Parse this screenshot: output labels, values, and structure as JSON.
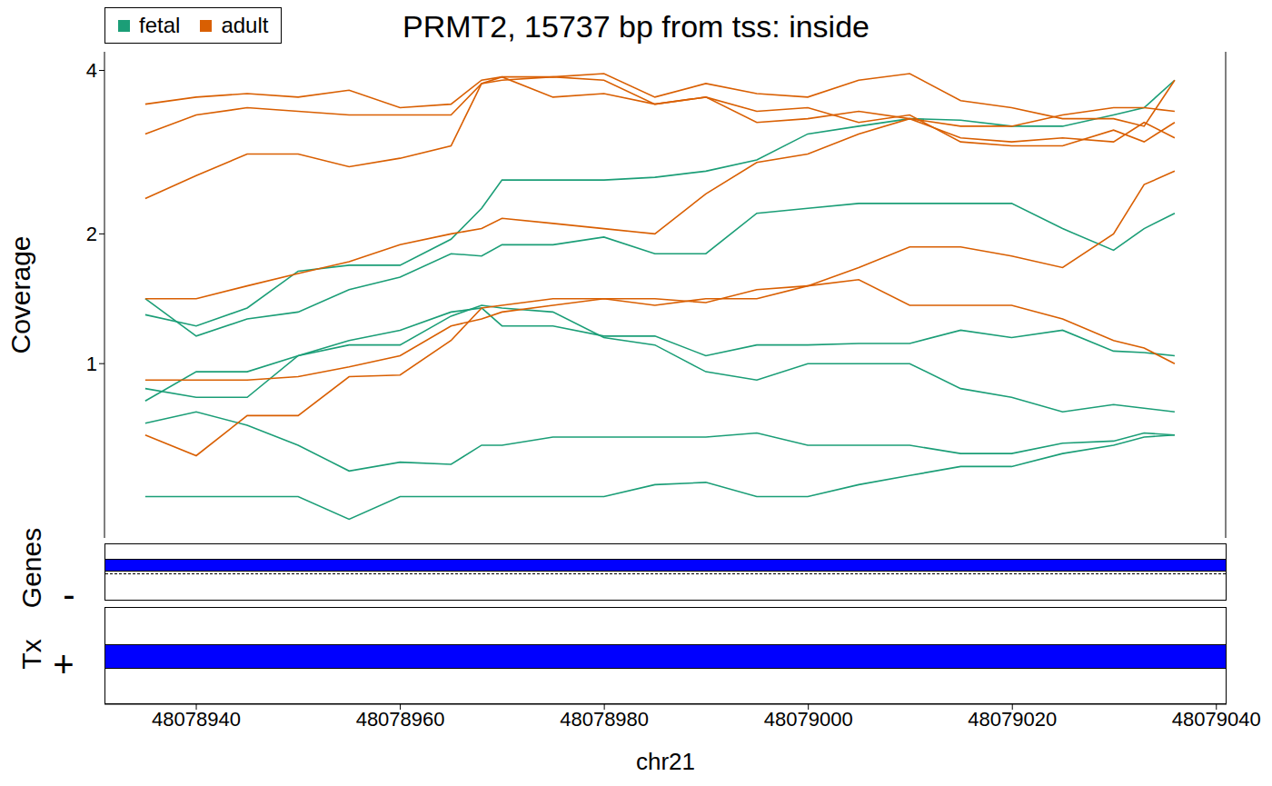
{
  "chart_data": {
    "type": "line",
    "title": "PRMT2, 15737 bp from tss: inside",
    "x_label": "chr21",
    "y_label": "Coverage",
    "log": "y",
    "legend": "top-left",
    "grid": false,
    "xlim": [
      48078931,
      48079041
    ],
    "xticks": [
      48078940,
      48078960,
      48078980,
      48079000,
      48079020,
      48079040
    ],
    "ylim": [
      0.16,
      4.3
    ],
    "yticks": [
      1,
      2,
      4
    ],
    "x": [
      48078935,
      48078940,
      48078945,
      48078950,
      48078955,
      48078960,
      48078965,
      48078968,
      48078970,
      48078975,
      48078980,
      48078985,
      48078990,
      48078995,
      48079000,
      48079005,
      48079010,
      48079015,
      48079020,
      48079025,
      48079030,
      48079033,
      48079036
    ],
    "series": [
      {
        "name": "fetal",
        "color": "#1b9e77",
        "values": [
          1.33,
          1.25,
          1.38,
          1.67,
          1.72,
          1.72,
          1.95,
          2.25,
          2.55,
          2.55,
          2.55,
          2.58,
          2.65,
          2.78,
          3.1,
          3.2,
          3.3,
          3.28,
          3.2,
          3.2,
          3.35,
          3.45,
          3.85
        ]
      },
      {
        "name": "fetal",
        "color": "#1b9e77",
        "values": [
          1.45,
          1.18,
          1.3,
          1.35,
          1.52,
          1.62,
          1.82,
          1.8,
          1.9,
          1.9,
          1.97,
          1.82,
          1.82,
          2.2,
          2.25,
          2.3,
          2.3,
          2.3,
          2.3,
          2.05,
          1.85,
          2.05,
          2.2
        ]
      },
      {
        "name": "fetal",
        "color": "#1b9e77",
        "values": [
          0.85,
          0.8,
          0.8,
          1.05,
          1.15,
          1.22,
          1.35,
          1.38,
          1.25,
          1.25,
          1.18,
          1.18,
          1.05,
          1.12,
          1.12,
          1.13,
          1.13,
          1.22,
          1.17,
          1.22,
          1.08,
          1.07,
          1.05
        ]
      },
      {
        "name": "fetal",
        "color": "#1b9e77",
        "values": [
          0.78,
          0.95,
          0.95,
          1.05,
          1.12,
          1.12,
          1.32,
          1.4,
          1.38,
          1.35,
          1.17,
          1.12,
          0.95,
          0.9,
          1.0,
          1.0,
          1.0,
          0.85,
          0.8,
          0.72,
          0.76,
          0.74,
          0.72
        ]
      },
      {
        "name": "fetal",
        "color": "#1b9e77",
        "values": [
          0.66,
          0.72,
          0.65,
          0.55,
          0.43,
          0.47,
          0.46,
          0.55,
          0.55,
          0.59,
          0.59,
          0.59,
          0.59,
          0.61,
          0.55,
          0.55,
          0.55,
          0.51,
          0.51,
          0.56,
          0.57,
          0.61,
          0.6
        ]
      },
      {
        "name": "fetal",
        "color": "#1b9e77",
        "values": [
          0.32,
          0.32,
          0.32,
          0.32,
          0.23,
          0.32,
          0.32,
          0.32,
          0.32,
          0.32,
          0.32,
          0.37,
          0.38,
          0.32,
          0.32,
          0.37,
          0.41,
          0.45,
          0.45,
          0.51,
          0.55,
          0.59,
          0.6
        ]
      },
      {
        "name": "adult",
        "color": "#d95f02",
        "values": [
          3.5,
          3.6,
          3.65,
          3.6,
          3.7,
          3.45,
          3.5,
          3.85,
          3.9,
          3.9,
          3.95,
          3.6,
          3.8,
          3.65,
          3.6,
          3.85,
          3.95,
          3.55,
          3.45,
          3.3,
          3.3,
          3.2,
          3.85
        ]
      },
      {
        "name": "adult",
        "color": "#d95f02",
        "values": [
          3.1,
          3.35,
          3.45,
          3.4,
          3.35,
          3.35,
          3.35,
          3.8,
          3.85,
          3.9,
          3.85,
          3.5,
          3.6,
          3.4,
          3.45,
          3.25,
          3.35,
          3.0,
          2.95,
          2.95,
          3.15,
          3.0,
          3.25
        ]
      },
      {
        "name": "adult",
        "color": "#d95f02",
        "values": [
          2.35,
          2.6,
          2.85,
          2.85,
          2.7,
          2.8,
          2.95,
          3.8,
          3.9,
          3.6,
          3.65,
          3.5,
          3.6,
          3.25,
          3.3,
          3.4,
          3.3,
          3.2,
          3.2,
          3.35,
          3.45,
          3.45,
          3.4
        ]
      },
      {
        "name": "adult",
        "color": "#d95f02",
        "values": [
          1.45,
          1.45,
          1.55,
          1.65,
          1.75,
          1.9,
          2.0,
          2.05,
          2.15,
          2.1,
          2.05,
          2.0,
          2.4,
          2.75,
          2.85,
          3.1,
          3.3,
          3.05,
          3.0,
          3.05,
          3.0,
          3.25,
          3.05
        ]
      },
      {
        "name": "adult",
        "color": "#d95f02",
        "values": [
          0.9,
          0.9,
          0.9,
          0.92,
          0.98,
          1.05,
          1.25,
          1.3,
          1.35,
          1.4,
          1.45,
          1.4,
          1.45,
          1.45,
          1.55,
          1.6,
          1.4,
          1.4,
          1.4,
          1.3,
          1.15,
          1.1,
          1.0
        ]
      },
      {
        "name": "adult",
        "color": "#d95f02",
        "values": [
          0.6,
          0.5,
          0.7,
          0.7,
          0.92,
          0.93,
          1.15,
          1.38,
          1.4,
          1.45,
          1.45,
          1.45,
          1.42,
          1.52,
          1.55,
          1.7,
          1.88,
          1.88,
          1.8,
          1.7,
          2.0,
          2.5,
          2.65
        ]
      }
    ],
    "tracks": [
      {
        "label": "Genes",
        "strand": "-"
      },
      {
        "label": "Tx",
        "strand": "+"
      }
    ]
  }
}
